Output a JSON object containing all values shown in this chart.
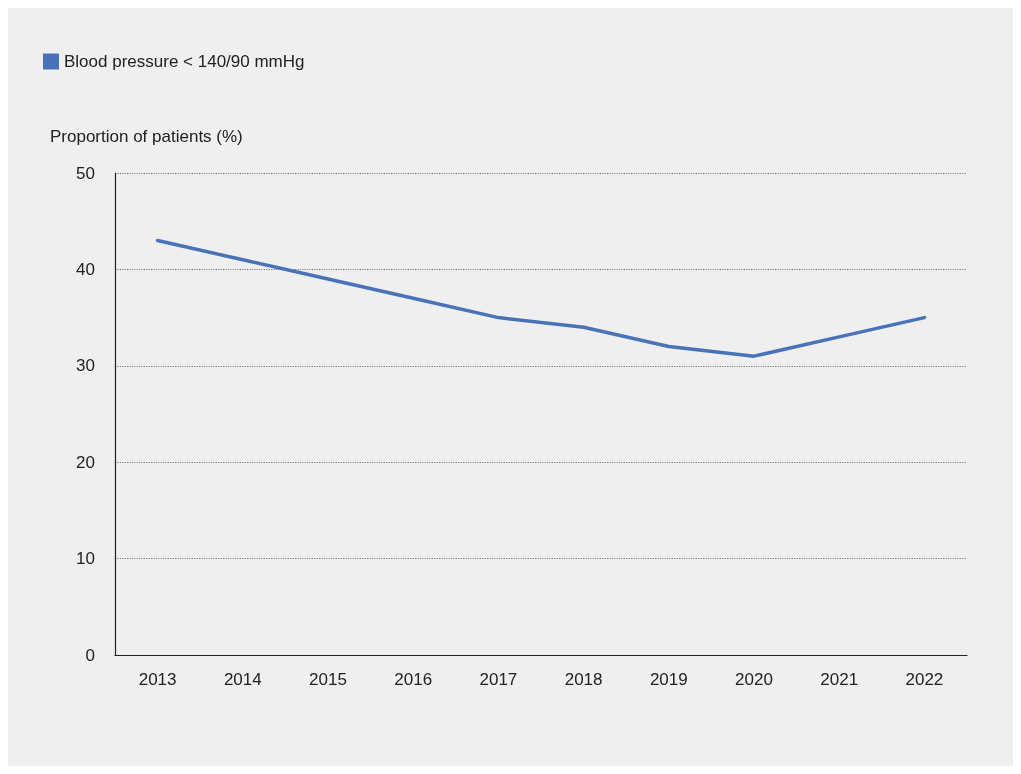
{
  "chart_data": {
    "type": "line",
    "ylabel": "Proportion of patients (%)",
    "categories": [
      "2013",
      "2014",
      "2015",
      "2016",
      "2017",
      "2018",
      "2019",
      "2020",
      "2021",
      "2022"
    ],
    "series": [
      {
        "name": "Blood pressure < 140/90 mmHg",
        "color": "#4a72b8",
        "values": [
          43,
          41,
          39,
          37,
          35,
          34,
          32,
          31,
          33,
          35
        ]
      }
    ],
    "ylim": [
      0,
      50
    ],
    "yticks": [
      0,
      10,
      20,
      30,
      40,
      50
    ],
    "grid": "y",
    "legend": "top left",
    "marker": "none",
    "line_style": "solid"
  }
}
